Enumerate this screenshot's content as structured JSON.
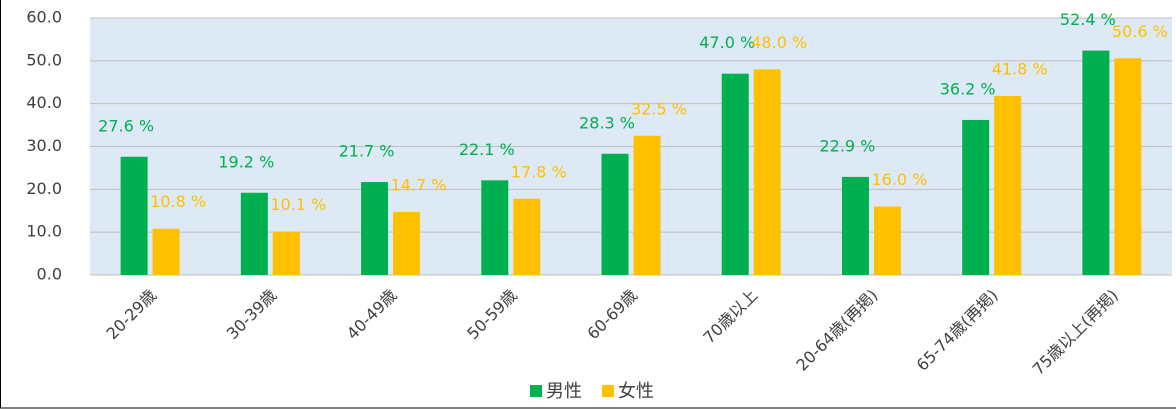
{
  "chart_data": {
    "type": "bar",
    "categories": [
      "20-29歳",
      "30-39歳",
      "40-49歳",
      "50-59歳",
      "60-69歳",
      "70歳以上",
      "20-64歳(再掲)",
      "65-74歳(再掲)",
      "75歳以上(再掲)"
    ],
    "series": [
      {
        "name": "男性",
        "color": "#00b050",
        "values": [
          27.6,
          19.2,
          21.7,
          22.1,
          28.3,
          47.0,
          22.9,
          36.2,
          52.4
        ],
        "value_labels": [
          "27.6 %",
          "19.2 %",
          "21.7 %",
          "22.1 %",
          "28.3 %",
          "47.0 %",
          "22.9 %",
          "36.2 %",
          "52.4 %"
        ]
      },
      {
        "name": "女性",
        "color": "#ffc000",
        "values": [
          10.8,
          10.1,
          14.7,
          17.8,
          32.5,
          48.0,
          16.0,
          41.8,
          50.6
        ],
        "value_labels": [
          "10.8 %",
          "10.1 %",
          "14.7 %",
          "17.8 %",
          "32.5 %",
          "48.0 %",
          "16.0 %",
          "41.8 %",
          "50.6 %"
        ]
      }
    ],
    "ylim": [
      0,
      60
    ],
    "yticks": [
      {
        "value": 0,
        "label": "0.0"
      },
      {
        "value": 10,
        "label": "10.0"
      },
      {
        "value": 20,
        "label": "20.0"
      },
      {
        "value": 30,
        "label": "30.0"
      },
      {
        "value": 40,
        "label": "40.0"
      },
      {
        "value": 50,
        "label": "50.0"
      },
      {
        "value": 60,
        "label": "60.0"
      }
    ],
    "grid": true
  }
}
